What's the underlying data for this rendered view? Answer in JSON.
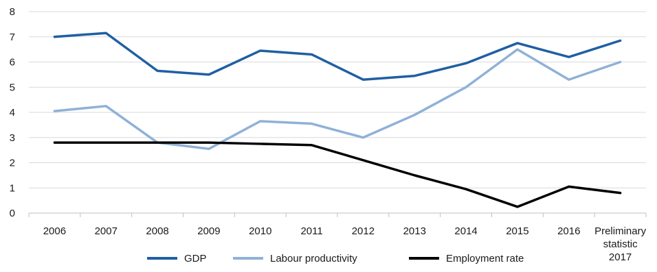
{
  "chart_data": {
    "type": "line",
    "categories": [
      "2006",
      "2007",
      "2008",
      "2009",
      "2010",
      "2011",
      "2012",
      "2013",
      "2014",
      "2015",
      "2016",
      "Preliminary statistic 2017"
    ],
    "series": [
      {
        "name": "GDP",
        "color": "#1f5fa3",
        "values": [
          7.0,
          7.15,
          5.65,
          5.5,
          6.45,
          6.3,
          5.3,
          5.45,
          5.95,
          6.75,
          6.2,
          6.85
        ]
      },
      {
        "name": "Labour productivity",
        "color": "#8fb1d8",
        "values": [
          4.05,
          4.25,
          2.8,
          2.55,
          3.65,
          3.55,
          3.0,
          3.9,
          5.0,
          6.5,
          5.3,
          6.0
        ]
      },
      {
        "name": "Employment rate",
        "color": "#000000",
        "values": [
          2.8,
          2.8,
          2.8,
          2.8,
          2.75,
          2.7,
          2.1,
          1.5,
          0.95,
          0.25,
          1.05,
          0.8
        ]
      }
    ],
    "ylim": [
      0,
      8
    ],
    "yticks": [
      "0",
      "1",
      "2",
      "3",
      "4",
      "5",
      "6",
      "7",
      "8"
    ],
    "grid": "horizontal",
    "legend": "bottom",
    "title": "",
    "xlabel": "",
    "ylabel": ""
  }
}
